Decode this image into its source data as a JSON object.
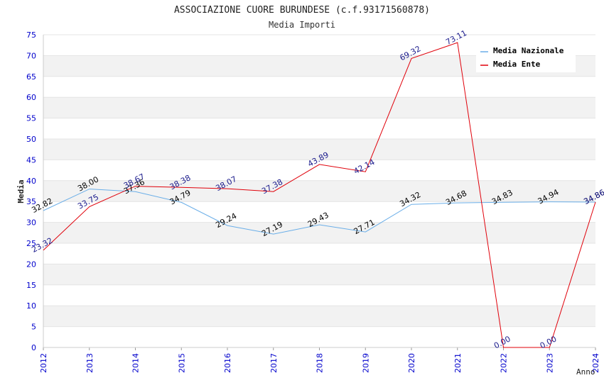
{
  "chart_data": {
    "type": "line",
    "title": "ASSOCIAZIONE CUORE BURUNDESE (c.f.93171560878)",
    "subtitle": "Media Importi",
    "xlabel": "Anno",
    "ylabel": "Media",
    "x": [
      "2012",
      "2013",
      "2014",
      "2015",
      "2016",
      "2017",
      "2018",
      "2019",
      "2020",
      "2021",
      "2022",
      "2023",
      "2024"
    ],
    "ylim": [
      0,
      75
    ],
    "yticks": [
      0,
      5,
      10,
      15,
      20,
      25,
      30,
      35,
      40,
      45,
      50,
      55,
      60,
      65,
      70,
      75
    ],
    "grid": true,
    "legend_position": "top-right",
    "series": [
      {
        "name": "Media Nazionale",
        "color": "#6aaee8",
        "label_color": "#000000",
        "values": [
          32.82,
          38.0,
          37.36,
          34.79,
          29.24,
          27.19,
          29.43,
          27.71,
          34.32,
          34.68,
          34.83,
          34.94,
          34.86
        ],
        "labels": [
          "32.82",
          "38.00",
          "37.36",
          "34.79",
          "29.24",
          "27.19",
          "29.43",
          "27.71",
          "34.32",
          "34.68",
          "34.83",
          "34.94",
          "34.86"
        ]
      },
      {
        "name": "Media Ente",
        "color": "#e0000a",
        "label_color": "#1a1a8c",
        "values": [
          23.32,
          33.75,
          38.67,
          38.38,
          38.07,
          37.38,
          43.89,
          42.14,
          69.32,
          73.11,
          0.0,
          0.0,
          34.86
        ],
        "labels": [
          "23.32",
          "33.75",
          "38.67",
          "38.38",
          "38.07",
          "37.38",
          "43.89",
          "42.14",
          "69.32",
          "73.11",
          "0.00",
          "0.00",
          "34.86"
        ]
      }
    ]
  },
  "colors": {
    "tick_text": "#0000cc",
    "band": "#f2f2f2",
    "axis": "#cccccc"
  }
}
